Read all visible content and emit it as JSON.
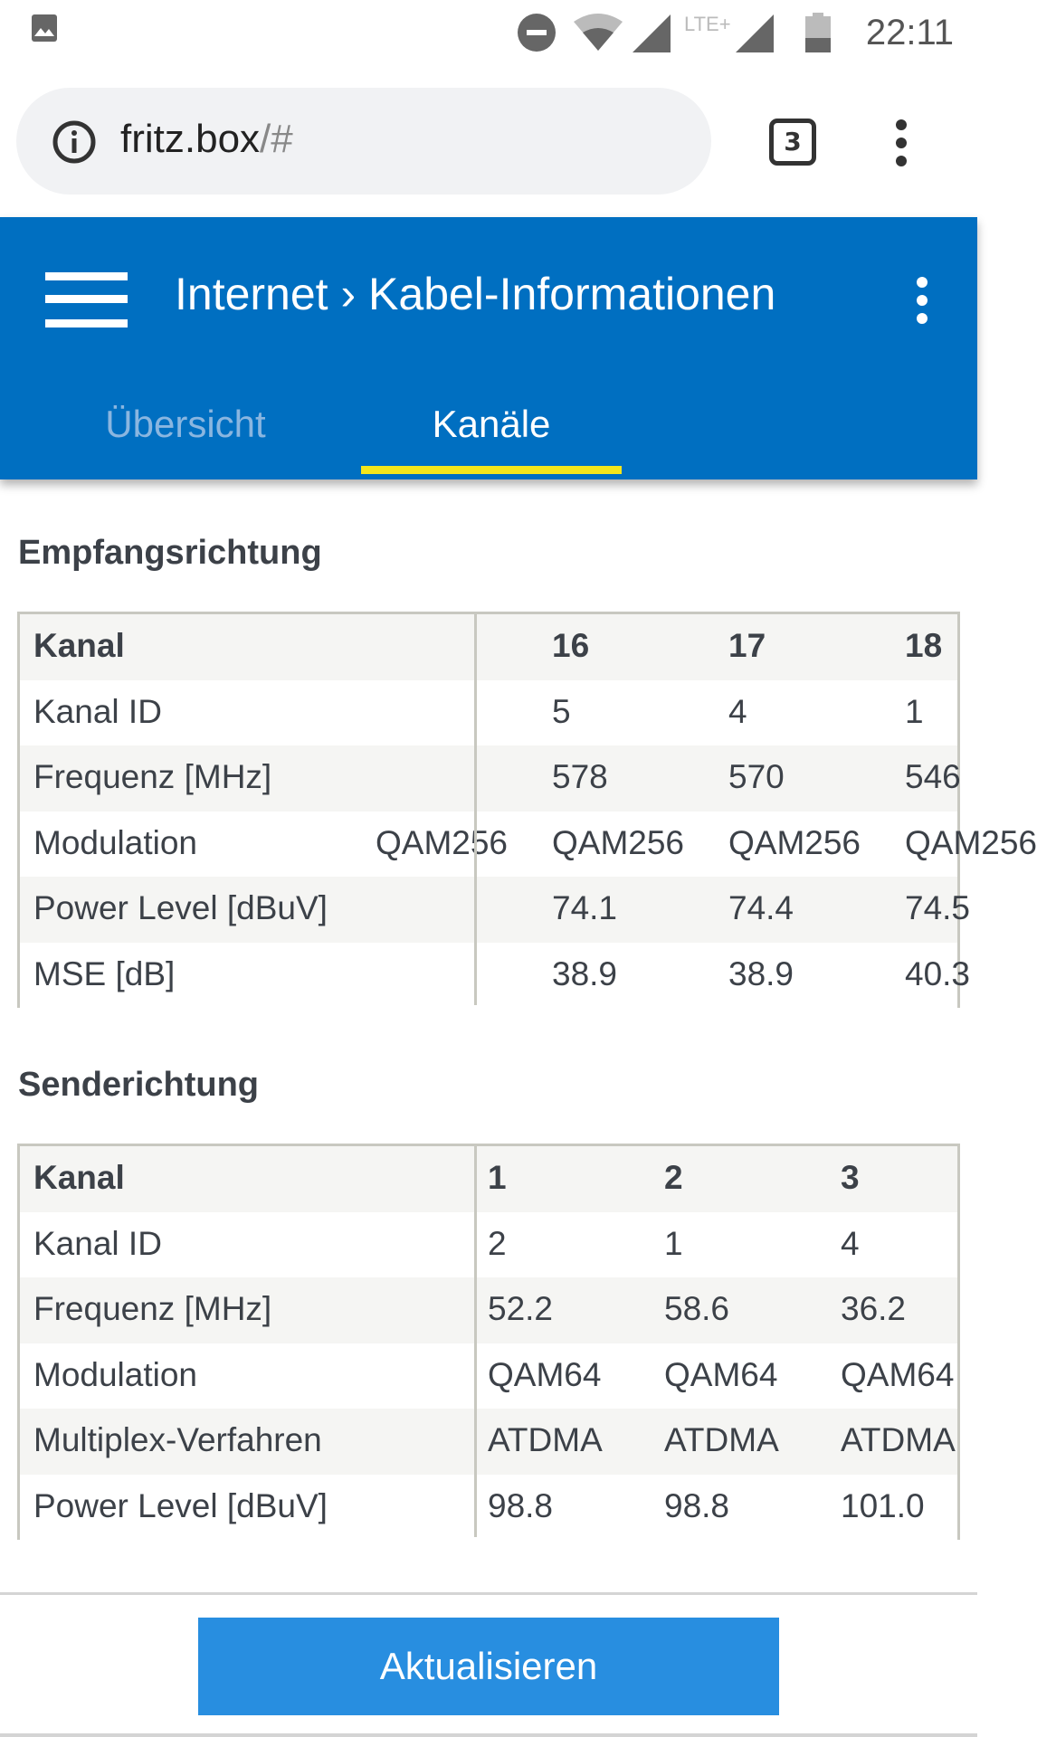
{
  "status_bar": {
    "time": "22:11",
    "network_label": "LTE+",
    "icons": [
      "image-icon",
      "dnd-icon",
      "wifi-icon",
      "signal-icon",
      "signal-icon",
      "battery-icon"
    ]
  },
  "browser": {
    "url_host": "fritz.box",
    "url_path": "/#",
    "tab_count": "3"
  },
  "header": {
    "breadcrumb_parent": "Internet",
    "breadcrumb_sep": "›",
    "breadcrumb_current": "Kabel-Informationen",
    "tabs": [
      {
        "label": "Übersicht",
        "active": false
      },
      {
        "label": "Kanäle",
        "active": true
      }
    ],
    "colors": {
      "header": "#006fc1",
      "tab_indicator": "#f5e61a"
    }
  },
  "downstream": {
    "title": "Empfangsrichtung",
    "row_labels": [
      "Kanal",
      "Kanal ID",
      "Frequenz [MHz]",
      "Modulation",
      "Power Level [dBuV]",
      "MSE [dB]"
    ],
    "columns": [
      {
        "values": [
          "",
          "",
          "",
          "QAM256",
          "",
          ""
        ]
      },
      {
        "values": [
          "16",
          "5",
          "578",
          "QAM256",
          "74.1",
          "38.9"
        ]
      },
      {
        "values": [
          "17",
          "4",
          "570",
          "QAM256",
          "74.4",
          "38.9"
        ]
      },
      {
        "values": [
          "18",
          "1",
          "546",
          "QAM256",
          "74.5",
          "40.3"
        ]
      }
    ]
  },
  "upstream": {
    "title": "Senderichtung",
    "row_labels": [
      "Kanal",
      "Kanal ID",
      "Frequenz [MHz]",
      "Modulation",
      "Multiplex-Verfahren",
      "Power Level [dBuV]"
    ],
    "columns": [
      {
        "values": [
          "1",
          "2",
          "52.2",
          "QAM64",
          "ATDMA",
          "98.8"
        ]
      },
      {
        "values": [
          "2",
          "1",
          "58.6",
          "QAM64",
          "ATDMA",
          "98.8"
        ]
      },
      {
        "values": [
          "3",
          "4",
          "36.2",
          "QAM64",
          "ATDMA",
          "101.0"
        ]
      }
    ]
  },
  "footer": {
    "refresh_label": "Aktualisieren",
    "button_color": "#288ee0"
  }
}
